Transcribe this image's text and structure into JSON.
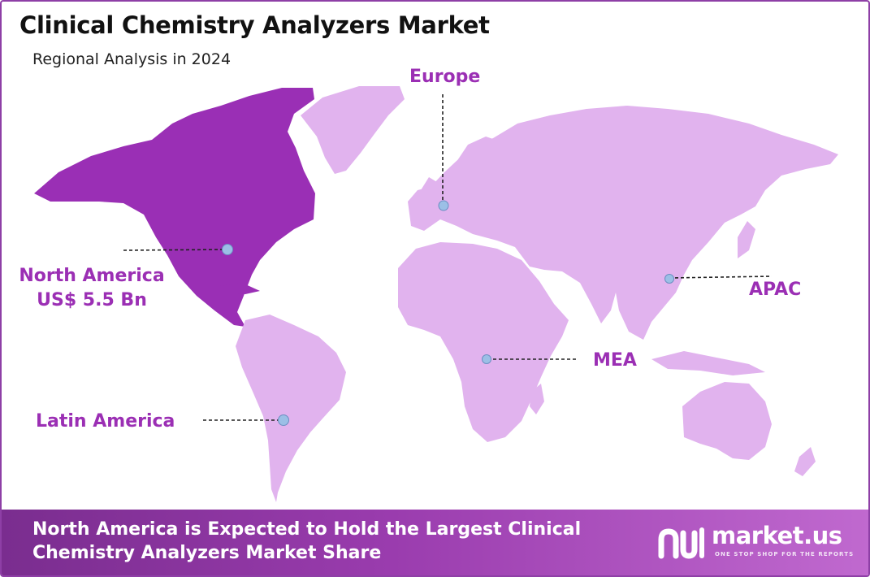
{
  "header": {
    "title": "Clinical Chemistry Analyzers Market",
    "subtitle": "Regional Analysis in 2024"
  },
  "colors": {
    "highlight_region": "#9a2fb5",
    "other_regions": "#e1b3ee",
    "label_text": "#9b2fb4",
    "marker": "#9cbfe6"
  },
  "regions": {
    "north_america": {
      "name": "North America",
      "value": "US$ 5.5 Bn",
      "highlighted": true
    },
    "europe": {
      "name": "Europe"
    },
    "apac": {
      "name": "APAC"
    },
    "mea": {
      "name": "MEA"
    },
    "latin_america": {
      "name": "Latin America"
    }
  },
  "footer": {
    "headline": "North America is Expected to Hold the Largest Clinical Chemistry Analyzers Market Share",
    "logo_name": "market.us",
    "logo_tagline": "ONE STOP SHOP FOR THE REPORTS"
  }
}
